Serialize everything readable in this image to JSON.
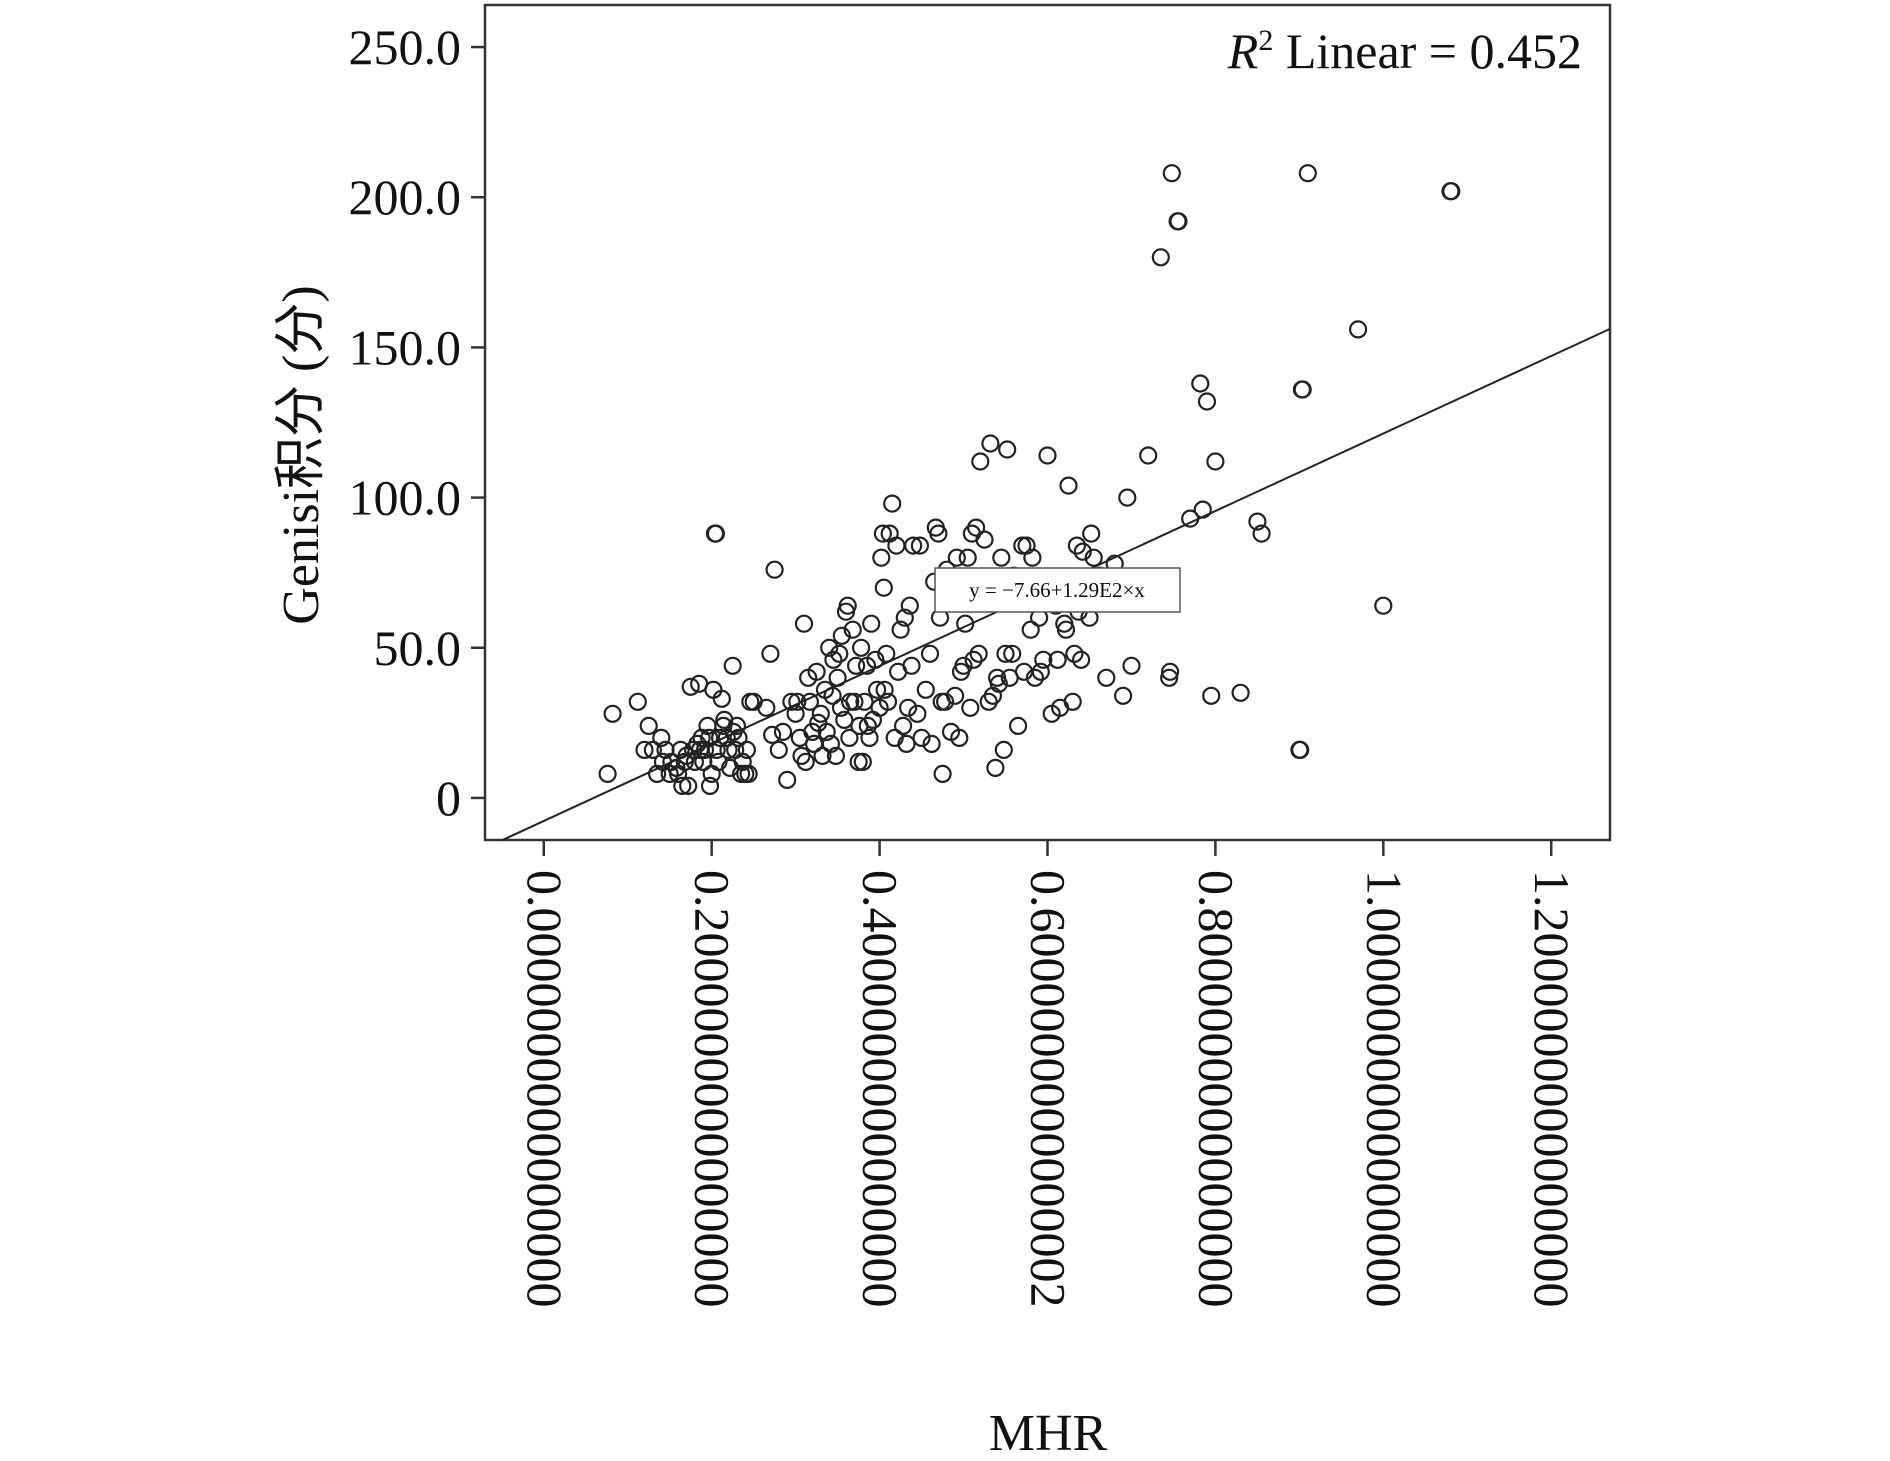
{
  "chart_data": {
    "type": "scatter",
    "xlabel": "MHR",
    "ylabel": "Genisi积分 (分)",
    "xlim": [
      -0.07,
      1.27
    ],
    "ylim": [
      -14,
      264
    ],
    "x_ticks": [
      0.0,
      0.2,
      0.4,
      0.6,
      0.8,
      1.0,
      1.2
    ],
    "x_tick_labels": [
      "0.0000000000000000",
      "0.2000000000000000",
      "0.4000000000000000",
      "0.6000000000000002",
      "0.8000000000000000",
      "1.0000000000000000",
      "1.2000000000000000"
    ],
    "y_ticks": [
      0,
      50,
      100,
      150,
      200,
      250
    ],
    "y_tick_labels": [
      "0",
      "50.0",
      "100.0",
      "150.0",
      "200.0",
      "250.0"
    ],
    "r2_annotation": {
      "prefix": "R",
      "sup": "2",
      "rest": " Linear = 0.452"
    },
    "fit_equation": "y = −7.66+1.29E2×x",
    "fit": {
      "intercept": -7.66,
      "slope": 129
    },
    "grid": false,
    "points": [
      [
        0.076,
        8
      ],
      [
        0.082,
        28
      ],
      [
        0.112,
        32
      ],
      [
        0.12,
        16
      ],
      [
        0.125,
        24
      ],
      [
        0.13,
        16
      ],
      [
        0.135,
        8
      ],
      [
        0.14,
        20
      ],
      [
        0.142,
        12
      ],
      [
        0.145,
        16
      ],
      [
        0.15,
        8
      ],
      [
        0.152,
        12
      ],
      [
        0.158,
        10
      ],
      [
        0.16,
        8
      ],
      [
        0.163,
        16
      ],
      [
        0.165,
        4
      ],
      [
        0.168,
        12
      ],
      [
        0.17,
        14
      ],
      [
        0.172,
        4
      ],
      [
        0.175,
        37
      ],
      [
        0.178,
        16
      ],
      [
        0.18,
        12
      ],
      [
        0.183,
        18
      ],
      [
        0.185,
        38
      ],
      [
        0.186,
        16
      ],
      [
        0.188,
        20
      ],
      [
        0.19,
        12
      ],
      [
        0.192,
        16
      ],
      [
        0.195,
        24
      ],
      [
        0.197,
        20
      ],
      [
        0.198,
        4
      ],
      [
        0.2,
        8
      ],
      [
        0.202,
        36
      ],
      [
        0.204,
        88
      ],
      [
        0.205,
        88
      ],
      [
        0.206,
        16
      ],
      [
        0.208,
        12
      ],
      [
        0.21,
        20
      ],
      [
        0.212,
        33
      ],
      [
        0.214,
        24
      ],
      [
        0.215,
        26
      ],
      [
        0.218,
        20
      ],
      [
        0.22,
        16
      ],
      [
        0.222,
        10
      ],
      [
        0.225,
        44
      ],
      [
        0.226,
        22
      ],
      [
        0.228,
        16
      ],
      [
        0.23,
        24
      ],
      [
        0.232,
        20
      ],
      [
        0.235,
        8
      ],
      [
        0.237,
        12
      ],
      [
        0.24,
        8
      ],
      [
        0.242,
        16
      ],
      [
        0.244,
        8
      ],
      [
        0.246,
        32
      ],
      [
        0.25,
        32
      ],
      [
        0.265,
        30
      ],
      [
        0.27,
        48
      ],
      [
        0.272,
        21
      ],
      [
        0.275,
        76
      ],
      [
        0.28,
        16
      ],
      [
        0.285,
        22
      ],
      [
        0.29,
        6
      ],
      [
        0.295,
        32
      ],
      [
        0.3,
        28
      ],
      [
        0.302,
        32
      ],
      [
        0.305,
        20
      ],
      [
        0.307,
        14
      ],
      [
        0.31,
        58
      ],
      [
        0.312,
        12
      ],
      [
        0.315,
        40
      ],
      [
        0.317,
        32
      ],
      [
        0.32,
        22
      ],
      [
        0.322,
        18
      ],
      [
        0.325,
        42
      ],
      [
        0.327,
        25
      ],
      [
        0.33,
        28
      ],
      [
        0.332,
        14
      ],
      [
        0.335,
        36
      ],
      [
        0.337,
        22
      ],
      [
        0.34,
        50
      ],
      [
        0.342,
        18
      ],
      [
        0.344,
        34
      ],
      [
        0.345,
        46
      ],
      [
        0.348,
        14
      ],
      [
        0.35,
        40
      ],
      [
        0.352,
        48
      ],
      [
        0.354,
        30
      ],
      [
        0.355,
        54
      ],
      [
        0.358,
        26
      ],
      [
        0.36,
        62
      ],
      [
        0.362,
        64
      ],
      [
        0.364,
        20
      ],
      [
        0.365,
        32
      ],
      [
        0.368,
        56
      ],
      [
        0.37,
        32
      ],
      [
        0.372,
        44
      ],
      [
        0.375,
        12
      ],
      [
        0.376,
        24
      ],
      [
        0.378,
        50
      ],
      [
        0.38,
        12
      ],
      [
        0.382,
        32
      ],
      [
        0.385,
        44
      ],
      [
        0.386,
        24
      ],
      [
        0.388,
        20
      ],
      [
        0.39,
        58
      ],
      [
        0.392,
        26
      ],
      [
        0.395,
        46
      ],
      [
        0.397,
        36
      ],
      [
        0.4,
        30
      ],
      [
        0.402,
        80
      ],
      [
        0.404,
        88
      ],
      [
        0.405,
        70
      ],
      [
        0.406,
        36
      ],
      [
        0.408,
        48
      ],
      [
        0.41,
        32
      ],
      [
        0.412,
        88
      ],
      [
        0.415,
        98
      ],
      [
        0.418,
        20
      ],
      [
        0.42,
        84
      ],
      [
        0.422,
        42
      ],
      [
        0.425,
        56
      ],
      [
        0.428,
        24
      ],
      [
        0.43,
        60
      ],
      [
        0.432,
        18
      ],
      [
        0.434,
        30
      ],
      [
        0.436,
        64
      ],
      [
        0.438,
        44
      ],
      [
        0.44,
        84
      ],
      [
        0.445,
        28
      ],
      [
        0.448,
        84
      ],
      [
        0.45,
        20
      ],
      [
        0.455,
        36
      ],
      [
        0.46,
        48
      ],
      [
        0.462,
        18
      ],
      [
        0.465,
        72
      ],
      [
        0.467,
        90
      ],
      [
        0.47,
        88
      ],
      [
        0.472,
        60
      ],
      [
        0.474,
        32
      ],
      [
        0.475,
        8
      ],
      [
        0.478,
        32
      ],
      [
        0.48,
        76
      ],
      [
        0.485,
        22
      ],
      [
        0.49,
        34
      ],
      [
        0.492,
        80
      ],
      [
        0.495,
        20
      ],
      [
        0.497,
        42
      ],
      [
        0.5,
        44
      ],
      [
        0.502,
        58
      ],
      [
        0.505,
        80
      ],
      [
        0.508,
        30
      ],
      [
        0.51,
        88
      ],
      [
        0.512,
        46
      ],
      [
        0.515,
        90
      ],
      [
        0.518,
        48
      ],
      [
        0.52,
        112
      ],
      [
        0.525,
        86
      ],
      [
        0.53,
        32
      ],
      [
        0.532,
        118
      ],
      [
        0.535,
        34
      ],
      [
        0.538,
        10
      ],
      [
        0.54,
        40
      ],
      [
        0.542,
        38
      ],
      [
        0.545,
        80
      ],
      [
        0.548,
        16
      ],
      [
        0.55,
        48
      ],
      [
        0.552,
        116
      ],
      [
        0.555,
        40
      ],
      [
        0.558,
        48
      ],
      [
        0.56,
        74
      ],
      [
        0.565,
        24
      ],
      [
        0.57,
        84
      ],
      [
        0.572,
        42
      ],
      [
        0.575,
        84
      ],
      [
        0.58,
        56
      ],
      [
        0.582,
        80
      ],
      [
        0.585,
        40
      ],
      [
        0.59,
        60
      ],
      [
        0.592,
        42
      ],
      [
        0.595,
        46
      ],
      [
        0.6,
        114
      ],
      [
        0.605,
        28
      ],
      [
        0.61,
        64
      ],
      [
        0.612,
        46
      ],
      [
        0.615,
        30
      ],
      [
        0.62,
        58
      ],
      [
        0.622,
        56
      ],
      [
        0.625,
        104
      ],
      [
        0.63,
        32
      ],
      [
        0.632,
        48
      ],
      [
        0.635,
        84
      ],
      [
        0.637,
        62
      ],
      [
        0.64,
        46
      ],
      [
        0.642,
        82
      ],
      [
        0.645,
        68
      ],
      [
        0.65,
        60
      ],
      [
        0.652,
        88
      ],
      [
        0.655,
        80
      ],
      [
        0.66,
        72
      ],
      [
        0.662,
        74
      ],
      [
        0.67,
        40
      ],
      [
        0.68,
        78
      ],
      [
        0.69,
        34
      ],
      [
        0.695,
        100
      ],
      [
        0.7,
        44
      ],
      [
        0.72,
        114
      ],
      [
        0.735,
        180
      ],
      [
        0.74,
        68
      ],
      [
        0.745,
        40
      ],
      [
        0.746,
        42
      ],
      [
        0.748,
        208
      ],
      [
        0.755,
        192
      ],
      [
        0.756,
        192
      ],
      [
        0.77,
        93
      ],
      [
        0.782,
        138
      ],
      [
        0.785,
        96
      ],
      [
        0.79,
        132
      ],
      [
        0.795,
        34
      ],
      [
        0.8,
        112
      ],
      [
        0.83,
        35
      ],
      [
        0.85,
        92
      ],
      [
        0.855,
        88
      ],
      [
        0.9,
        16
      ],
      [
        0.901,
        16
      ],
      [
        0.903,
        136
      ],
      [
        0.904,
        136
      ],
      [
        0.91,
        208
      ],
      [
        0.97,
        156
      ],
      [
        1.0,
        64
      ],
      [
        1.08,
        202
      ],
      [
        1.081,
        202
      ]
    ]
  }
}
